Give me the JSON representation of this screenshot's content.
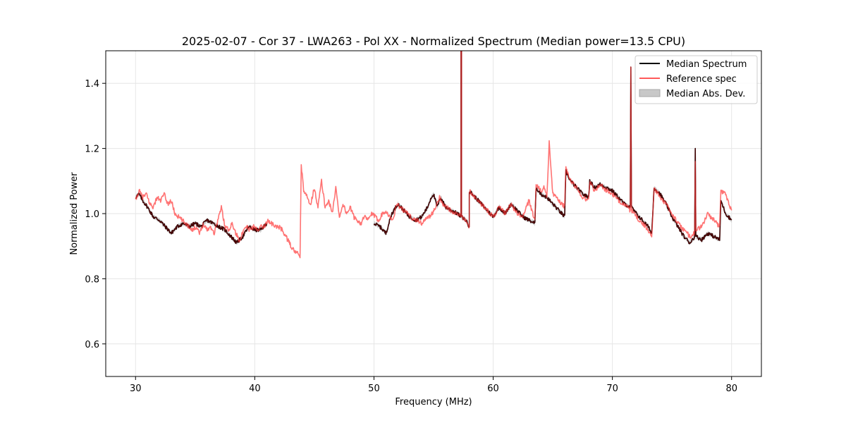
{
  "chart_data": {
    "type": "line",
    "title": "2025-02-07 - Cor 37 - LWA263 - Pol XX - Normalized Spectrum (Median power=13.5 CPU)",
    "xlabel": "Frequency (MHz)",
    "ylabel": "Normalized Power",
    "xlim": [
      27.5,
      82.5
    ],
    "ylim": [
      0.5,
      1.5
    ],
    "xticks": [
      30,
      40,
      50,
      60,
      70,
      80
    ],
    "yticks": [
      0.6,
      0.8,
      1.0,
      1.2,
      1.4
    ],
    "xtick_labels": [
      "30",
      "40",
      "50",
      "60",
      "70",
      "80"
    ],
    "ytick_labels": [
      "0.6",
      "0.8",
      "1.0",
      "1.2",
      "1.4"
    ],
    "grid": true,
    "legend_position": "top-right",
    "legend": [
      "Median Spectrum",
      "Reference spec",
      "Median Abs. Dev."
    ],
    "colors": {
      "median": "#000000",
      "reference": "#ff5a5a",
      "mad": "#c8c8c8",
      "overlap": "#8b0000"
    },
    "series": [
      {
        "name": "Median Spectrum",
        "segments": [
          {
            "x": [
              30.0,
              30.3,
              30.6,
              31.0,
              31.5,
              32.0,
              32.5,
              33.0,
              33.5,
              34.0,
              34.5,
              35.0,
              35.5,
              36.0,
              36.5,
              37.0,
              37.5,
              38.0,
              38.5,
              39.0,
              39.5,
              40.0,
              40.5,
              41.0
            ],
            "y": [
              1.05,
              1.06,
              1.04,
              1.02,
              0.99,
              0.98,
              0.96,
              0.94,
              0.96,
              0.97,
              0.96,
              0.97,
              0.96,
              0.98,
              0.97,
              0.96,
              0.95,
              0.93,
              0.91,
              0.93,
              0.96,
              0.95,
              0.95,
              0.97
            ]
          },
          {
            "x": [
              50.0,
              50.5,
              51.0,
              51.5,
              52.0,
              52.5,
              53.0,
              53.5,
              54.0,
              54.5,
              54.8,
              55.0,
              55.3,
              55.6,
              56.0,
              56.5,
              57.0,
              57.3,
              57.3,
              57.35,
              57.35,
              57.7,
              58.0,
              58.0,
              58.5,
              59.0,
              59.5,
              60.0,
              60.5,
              61.0,
              61.5,
              62.0,
              62.5,
              63.0,
              63.5,
              63.6,
              64.0,
              64.5,
              65.0,
              65.5,
              66.0,
              66.1,
              66.5,
              67.0,
              67.5,
              68.0,
              68.1,
              68.5,
              69.0,
              69.5,
              70.0,
              70.5,
              71.0,
              71.5,
              71.55,
              71.6,
              72.0,
              72.5,
              73.0,
              73.3,
              73.5,
              74.0,
              74.5,
              75.0,
              75.5,
              76.0,
              76.5,
              76.9,
              76.95,
              77.0,
              77.5,
              78.0,
              78.5,
              79.0,
              79.1,
              79.5,
              80.0
            ],
            "y": [
              0.97,
              0.96,
              0.94,
              1.0,
              1.03,
              1.01,
              0.99,
              0.98,
              0.99,
              1.02,
              1.05,
              1.06,
              1.02,
              1.05,
              1.02,
              1.01,
              1.0,
              0.99,
              1.5,
              1.5,
              0.99,
              0.98,
              0.96,
              1.07,
              1.05,
              1.03,
              1.01,
              0.99,
              1.02,
              1.0,
              1.03,
              1.01,
              0.99,
              0.98,
              0.97,
              1.08,
              1.06,
              1.05,
              1.03,
              1.01,
              0.99,
              1.13,
              1.1,
              1.08,
              1.06,
              1.05,
              1.1,
              1.08,
              1.09,
              1.08,
              1.07,
              1.05,
              1.03,
              1.02,
              1.45,
              1.02,
              1.0,
              0.98,
              0.96,
              0.94,
              1.08,
              1.06,
              1.03,
              0.99,
              0.96,
              0.93,
              0.91,
              0.93,
              1.2,
              0.93,
              0.92,
              0.94,
              0.93,
              0.92,
              1.04,
              1.0,
              0.98
            ]
          }
        ]
      },
      {
        "name": "Reference spec",
        "segments": [
          {
            "x": [
              30.0,
              30.3,
              30.6,
              30.9,
              31.2,
              31.5,
              31.8,
              32.1,
              32.4,
              32.7,
              33.0,
              33.3,
              33.6,
              33.9,
              34.2,
              34.5,
              34.8,
              35.1,
              35.4,
              35.7,
              36.0,
              36.3,
              36.6,
              36.9,
              37.2,
              37.5,
              37.8,
              38.1,
              38.4,
              38.7,
              39.0,
              39.3,
              39.6,
              39.9,
              40.2,
              40.5,
              40.8,
              41.1,
              41.4,
              41.7,
              42.0,
              42.3,
              42.6,
              42.9,
              43.2,
              43.5,
              43.8,
              43.9,
              44.1,
              44.4,
              44.7,
              45.0,
              45.3,
              45.6,
              45.9,
              46.2,
              46.5,
              46.8,
              47.1,
              47.4,
              47.7,
              48.0,
              48.3,
              48.6,
              48.9,
              49.2,
              49.5,
              49.8,
              50.1,
              50.4,
              50.7,
              51.0,
              51.3,
              51.6,
              51.9,
              52.2,
              52.5,
              52.8,
              53.1,
              53.4,
              53.7,
              54.0,
              54.3,
              54.6,
              54.9,
              55.2,
              55.5,
              55.8,
              56.1,
              56.4,
              56.7,
              57.0,
              57.3,
              57.3,
              57.35,
              57.35,
              57.7,
              58.0,
              58.0,
              58.5,
              59.0,
              59.5,
              60.0,
              60.5,
              61.0,
              61.5,
              62.0,
              62.5,
              63.0,
              63.5,
              63.6,
              64.0,
              64.3,
              64.5,
              64.7,
              65.0,
              65.5,
              66.0,
              66.1,
              66.5,
              67.0,
              67.5,
              68.0,
              68.1,
              68.5,
              69.0,
              69.5,
              70.0,
              70.5,
              71.0,
              71.5,
              71.55,
              71.6,
              72.0,
              72.5,
              73.0,
              73.3,
              73.5,
              74.0,
              74.5,
              75.0,
              75.5,
              76.0,
              76.5,
              76.9,
              76.95,
              77.0,
              77.5,
              78.0,
              78.5,
              79.0,
              79.1,
              79.5,
              80.0
            ],
            "y": [
              1.04,
              1.07,
              1.05,
              1.06,
              1.03,
              1.02,
              1.05,
              1.04,
              1.06,
              1.03,
              1.04,
              1.0,
              0.99,
              0.98,
              0.97,
              0.96,
              0.95,
              0.96,
              0.94,
              0.97,
              0.95,
              0.96,
              0.94,
              0.98,
              1.02,
              0.96,
              0.95,
              0.97,
              0.94,
              0.92,
              0.94,
              0.96,
              0.95,
              0.96,
              0.95,
              0.96,
              0.96,
              0.98,
              0.97,
              0.96,
              0.96,
              0.95,
              0.93,
              0.91,
              0.89,
              0.88,
              0.87,
              1.15,
              1.07,
              1.05,
              1.03,
              1.08,
              1.02,
              1.1,
              1.02,
              1.04,
              1.0,
              1.08,
              0.99,
              1.03,
              1.0,
              1.02,
              0.99,
              0.98,
              0.97,
              0.99,
              0.98,
              1.0,
              0.99,
              0.98,
              1.0,
              1.01,
              0.99,
              0.98,
              1.03,
              1.02,
              1.01,
              1.0,
              0.99,
              0.98,
              0.98,
              0.97,
              0.98,
              0.99,
              1.0,
              1.02,
              1.05,
              1.03,
              1.02,
              1.01,
              1.0,
              1.0,
              0.99,
              1.5,
              1.5,
              0.99,
              0.98,
              0.96,
              1.07,
              1.05,
              1.03,
              1.01,
              0.99,
              1.02,
              1.0,
              1.03,
              1.0,
              0.99,
              1.04,
              0.98,
              1.09,
              1.07,
              1.08,
              1.05,
              1.22,
              1.06,
              1.04,
              1.02,
              1.14,
              1.1,
              1.08,
              1.05,
              1.04,
              1.1,
              1.07,
              1.09,
              1.07,
              1.06,
              1.04,
              1.03,
              1.01,
              1.45,
              1.01,
              0.99,
              0.97,
              0.95,
              0.93,
              1.08,
              1.05,
              1.03,
              1.0,
              0.97,
              0.95,
              0.93,
              0.94,
              1.16,
              0.95,
              0.96,
              1.0,
              0.98,
              0.96,
              1.07,
              1.06,
              1.01
            ]
          }
        ]
      },
      {
        "name": "Median Abs. Dev.",
        "type": "band",
        "half_width": 0.006
      }
    ]
  }
}
